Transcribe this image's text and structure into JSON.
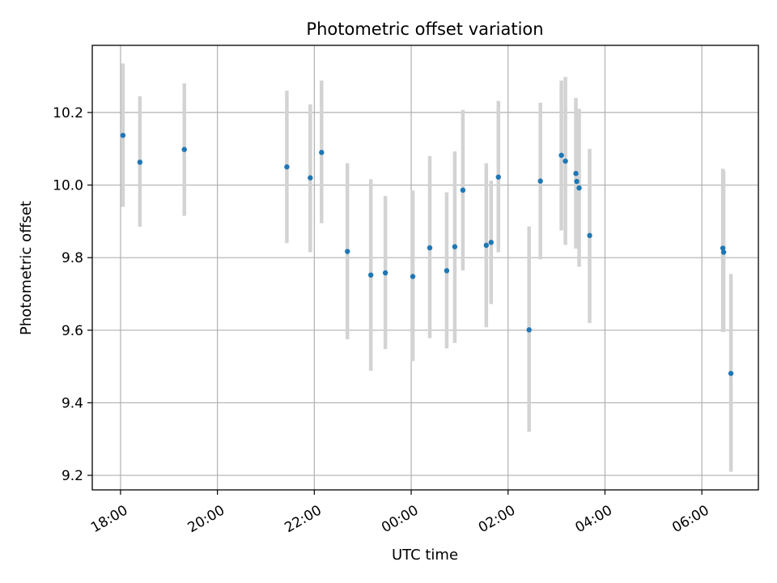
{
  "chart_data": {
    "type": "scatter",
    "title": "Photometric offset variation",
    "xlabel": "UTC time",
    "ylabel": "Photometric offset",
    "x_axis_kind": "time (hours, wrapping past midnight)",
    "xlim": [
      "17:25",
      "31:10"
    ],
    "ylim": [
      9.16,
      10.385
    ],
    "x_ticks": [
      {
        "label": "18:00",
        "hour": 18
      },
      {
        "label": "20:00",
        "hour": 20
      },
      {
        "label": "22:00",
        "hour": 22
      },
      {
        "label": "00:00",
        "hour": 24
      },
      {
        "label": "02:00",
        "hour": 26
      },
      {
        "label": "04:00",
        "hour": 28
      },
      {
        "label": "06:00",
        "hour": 30
      }
    ],
    "y_ticks": [
      "9.2",
      "9.4",
      "9.6",
      "9.8",
      "10.0",
      "10.2"
    ],
    "y_tick_values": [
      9.2,
      9.4,
      9.6,
      9.8,
      10.0,
      10.2
    ],
    "grid": true,
    "colors": {
      "points": "#1f77b4",
      "errorbars": "#d3d3d3",
      "grid": "#b0b0b0"
    },
    "points": [
      {
        "time": "18:03",
        "y": 10.137,
        "ylow": 9.94,
        "yhigh": 10.335
      },
      {
        "time": "18:24",
        "y": 10.063,
        "ylow": 9.885,
        "yhigh": 10.245
      },
      {
        "time": "19:19",
        "y": 10.098,
        "ylow": 9.915,
        "yhigh": 10.28
      },
      {
        "time": "21:26",
        "y": 10.05,
        "ylow": 9.84,
        "yhigh": 10.26
      },
      {
        "time": "21:55",
        "y": 10.02,
        "ylow": 9.815,
        "yhigh": 10.222
      },
      {
        "time": "22:09",
        "y": 10.09,
        "ylow": 9.895,
        "yhigh": 10.288
      },
      {
        "time": "22:41",
        "y": 9.817,
        "ylow": 9.575,
        "yhigh": 10.06
      },
      {
        "time": "23:10",
        "y": 9.752,
        "ylow": 9.488,
        "yhigh": 10.016
      },
      {
        "time": "23:28",
        "y": 9.758,
        "ylow": 9.548,
        "yhigh": 9.97
      },
      {
        "time": "00:02",
        "y": 9.748,
        "ylow": 9.515,
        "yhigh": 9.985
      },
      {
        "time": "00:23",
        "y": 9.827,
        "ylow": 9.578,
        "yhigh": 10.08
      },
      {
        "time": "00:44",
        "y": 9.764,
        "ylow": 9.55,
        "yhigh": 9.98
      },
      {
        "time": "00:54",
        "y": 9.83,
        "ylow": 9.565,
        "yhigh": 10.093
      },
      {
        "time": "01:04",
        "y": 9.986,
        "ylow": 9.765,
        "yhigh": 10.207
      },
      {
        "time": "01:33",
        "y": 9.834,
        "ylow": 9.608,
        "yhigh": 10.06
      },
      {
        "time": "01:39",
        "y": 9.842,
        "ylow": 9.672,
        "yhigh": 10.012
      },
      {
        "time": "01:48",
        "y": 10.022,
        "ylow": 9.815,
        "yhigh": 10.232
      },
      {
        "time": "02:26",
        "y": 9.601,
        "ylow": 9.32,
        "yhigh": 9.886
      },
      {
        "time": "02:40",
        "y": 10.011,
        "ylow": 9.795,
        "yhigh": 10.227
      },
      {
        "time": "03:06",
        "y": 10.082,
        "ylow": 9.875,
        "yhigh": 10.288
      },
      {
        "time": "03:11",
        "y": 10.066,
        "ylow": 9.835,
        "yhigh": 10.298
      },
      {
        "time": "03:24",
        "y": 10.032,
        "ylow": 9.825,
        "yhigh": 10.24
      },
      {
        "time": "03:25",
        "y": 10.01,
        "ylow": 9.855,
        "yhigh": 10.165
      },
      {
        "time": "03:28",
        "y": 9.992,
        "ylow": 9.775,
        "yhigh": 10.21
      },
      {
        "time": "03:41",
        "y": 9.861,
        "ylow": 9.62,
        "yhigh": 10.1
      },
      {
        "time": "06:26",
        "y": 9.826,
        "ylow": 9.595,
        "yhigh": 10.045
      },
      {
        "time": "06:27",
        "y": 9.815,
        "ylow": 9.595,
        "yhigh": 10.04
      },
      {
        "time": "06:36",
        "y": 9.481,
        "ylow": 9.21,
        "yhigh": 9.755
      }
    ]
  }
}
